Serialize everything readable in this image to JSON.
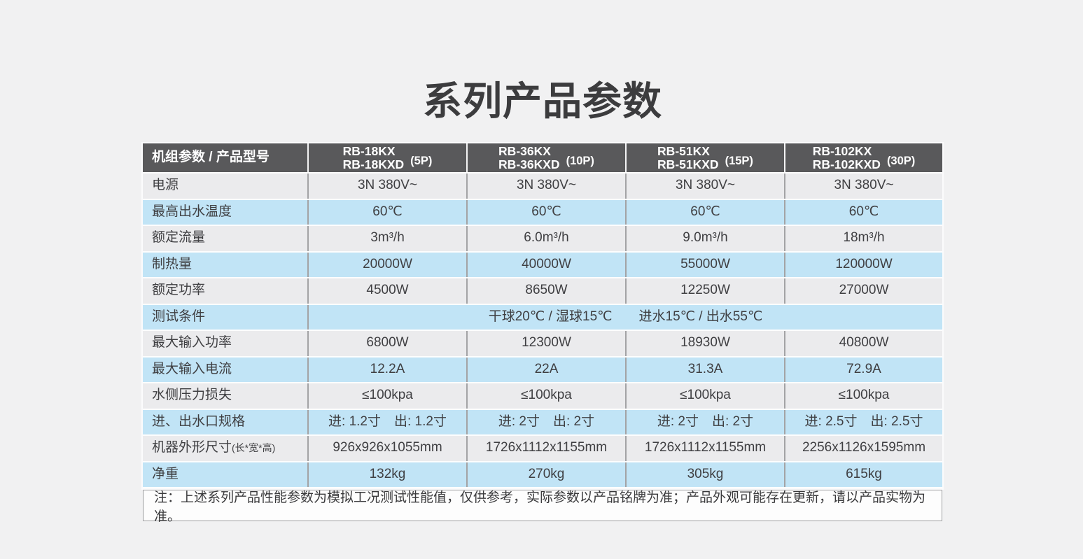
{
  "page": {
    "title": "系列产品参数"
  },
  "colors": {
    "page_bg": "#f1f1f2",
    "header_bg": "#59595b",
    "row_blue": "#c1e4f6",
    "row_gray": "#ebebed",
    "note_bg": "#fdfdfd",
    "cell_divider": "#a3a3a5",
    "header_text": "#ffffff",
    "body_text": "#3f3f42"
  },
  "table": {
    "corner_label": "机组参数 / 产品型号",
    "models": [
      {
        "line1": "RB-18KX",
        "line2": "RB-18KXD",
        "power": "(5P)"
      },
      {
        "line1": "RB-36KX",
        "line2": "RB-36KXD",
        "power": "(10P)"
      },
      {
        "line1": "RB-51KX",
        "line2": "RB-51KXD",
        "power": "(15P)"
      },
      {
        "line1": "RB-102KX",
        "line2": "RB-102KXD",
        "power": "(30P)"
      }
    ],
    "rows": [
      {
        "label": "电源",
        "values": [
          "3N 380V~",
          "3N 380V~",
          "3N 380V~",
          "3N 380V~"
        ]
      },
      {
        "label": "最高出水温度",
        "values": [
          "60℃",
          "60℃",
          "60℃",
          "60℃"
        ]
      },
      {
        "label": "额定流量",
        "values": [
          "3m³/h",
          "6.0m³/h",
          "9.0m³/h",
          "18m³/h"
        ]
      },
      {
        "label": "制热量",
        "values": [
          "20000W",
          "40000W",
          "55000W",
          "120000W"
        ]
      },
      {
        "label": "额定功率",
        "values": [
          "4500W",
          "8650W",
          "12250W",
          "27000W"
        ]
      },
      {
        "label": "测试条件",
        "merged": "干球20℃ / 湿球15℃　　进水15℃ / 出水55℃"
      },
      {
        "label": "最大输入功率",
        "values": [
          "6800W",
          "12300W",
          "18930W",
          "40800W"
        ]
      },
      {
        "label": "最大输入电流",
        "values": [
          "12.2A",
          "22A",
          "31.3A",
          "72.9A"
        ]
      },
      {
        "label": "水侧压力损失",
        "values": [
          "≤100kpa",
          "≤100kpa",
          "≤100kpa",
          "≤100kpa"
        ]
      },
      {
        "label": "进、出水口规格",
        "values": [
          "进: 1.2寸　出: 1.2寸",
          "进: 2寸　出: 2寸",
          "进: 2寸　出: 2寸",
          "进: 2.5寸　出: 2.5寸"
        ]
      },
      {
        "label": "机器外形尺寸",
        "label_suffix": "(长*宽*高)",
        "values": [
          "926x926x1055mm",
          "1726x1112x1155mm",
          "1726x1112x1155mm",
          "2256x1126x1595mm"
        ]
      },
      {
        "label": "净重",
        "values": [
          "132kg",
          "270kg",
          "305kg",
          "615kg"
        ]
      }
    ],
    "note": "注：上述系列产品性能参数为模拟工况测试性能值，仅供参考，实际参数以产品铭牌为准；产品外观可能存在更新，请以产品实物为准。"
  }
}
